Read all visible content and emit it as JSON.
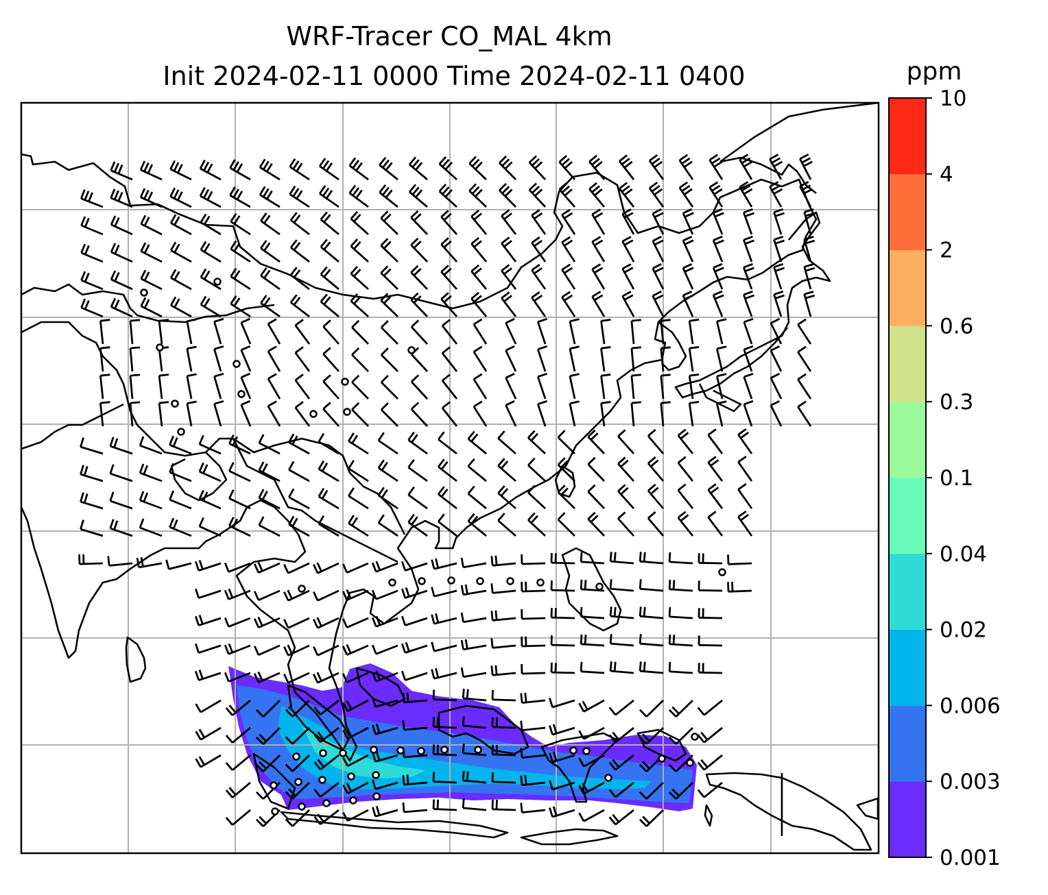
{
  "title": {
    "line1": "WRF-Tracer CO_MAL 4km",
    "line2": "Init 2024-02-11 0000 Time 2024-02-11 0400"
  },
  "colorbar": {
    "unit": "ppm",
    "levels": [
      "0.001",
      "0.003",
      "0.006",
      "0.02",
      "0.04",
      "0.1",
      "0.3",
      "0.6",
      "2",
      "4",
      "10"
    ],
    "colors": [
      "#6a2cff",
      "#3474f3",
      "#04b4ec",
      "#2fdbd6",
      "#6afbbb",
      "#9cf99a",
      "#d1e28a",
      "#fdaf61",
      "#ff6f3b",
      "#ff2a15"
    ]
  },
  "map": {
    "frame_color": "#000000",
    "gridline_color": "#b0b0b0",
    "wind_barbs": "shown",
    "coastlines": "shown"
  }
}
